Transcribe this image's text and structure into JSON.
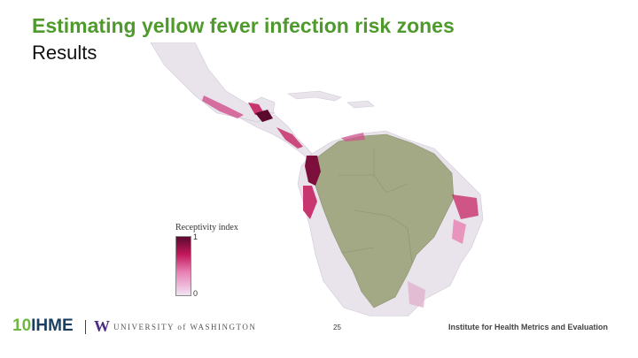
{
  "title": "Estimating yellow fever infection risk zones",
  "subtitle": "Results",
  "legend": {
    "title": "Receptivity index",
    "max_label": "1",
    "min_label": "0",
    "colors": [
      "#5b0a2e",
      "#c2185b",
      "#e87fb2",
      "#f0e4f4"
    ]
  },
  "map": {
    "region": "Central and South America",
    "endemic_zone_color": "#a3a985",
    "land_color": "#e9e4ec",
    "sea_color": "#ffffff",
    "hotspot_color": "#c2185b"
  },
  "footer": {
    "ihme_text": "IHME",
    "ihme_number": "10",
    "uw_letter": "W",
    "uw_name": "UNIVERSITY of WASHINGTON",
    "page_number": "25",
    "institute": "Institute for Health Metrics and Evaluation"
  }
}
